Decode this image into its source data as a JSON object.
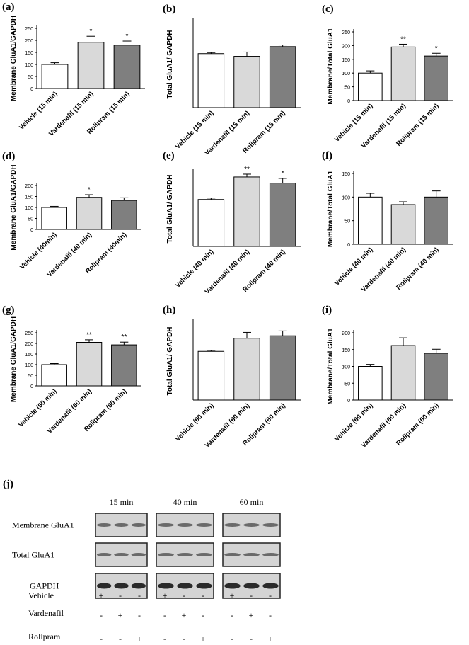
{
  "chart_data": [
    {
      "type": "bar",
      "panel": "(a)",
      "ylabel": "Membrane GluA1/GAPDH",
      "categories": [
        "Vehicle (15 min)",
        "Vardenafil (15 min)",
        "Rolipram (15 min)"
      ],
      "values": [
        100,
        192,
        180
      ],
      "errors": [
        7,
        25,
        17
      ],
      "significance": [
        null,
        "*",
        "*"
      ],
      "colors": [
        "#ffffff",
        "#d9d9d9",
        "#7f7f7f"
      ],
      "ylim": [
        0,
        250
      ],
      "yticks": [
        0,
        50,
        100,
        150,
        200,
        250
      ]
    },
    {
      "type": "bar",
      "panel": "(b)",
      "ylabel": "Total GluA1/ GAPDH",
      "categories": [
        "Vehicle (15 min)",
        "Vardenafil (15 min)",
        "Rolipram (15 min)"
      ],
      "values": [
        100,
        95,
        113
      ],
      "errors": [
        2,
        8,
        3
      ],
      "significance": [
        null,
        null,
        null
      ],
      "colors": [
        "#ffffff",
        "#d9d9d9",
        "#7f7f7f"
      ],
      "ylim": [
        0,
        160
      ],
      "yticks": []
    },
    {
      "type": "bar",
      "panel": "(c)",
      "ylabel": "Membrane/Total GluA1",
      "categories": [
        "Vehicle (15 min)",
        "Vardenafil (15 min)",
        "Rolipram (15 min)"
      ],
      "values": [
        100,
        195,
        162
      ],
      "errors": [
        8,
        10,
        10
      ],
      "significance": [
        null,
        "**",
        "*"
      ],
      "colors": [
        "#ffffff",
        "#d9d9d9",
        "#7f7f7f"
      ],
      "ylim": [
        0,
        250
      ],
      "yticks": [
        0,
        50,
        100,
        150,
        200,
        250
      ]
    },
    {
      "type": "bar",
      "panel": "(d)",
      "ylabel": "Membrane GluA1/GAPDH",
      "categories": [
        "Vehicle (40min)",
        "Vardenafil (40 min)",
        "Rolipram (40min)"
      ],
      "values": [
        100,
        146,
        132
      ],
      "errors": [
        5,
        12,
        12
      ],
      "significance": [
        null,
        "*",
        null
      ],
      "colors": [
        "#ffffff",
        "#d9d9d9",
        "#7f7f7f"
      ],
      "ylim": [
        0,
        200
      ],
      "yticks": [
        0,
        50,
        100,
        150,
        200
      ]
    },
    {
      "type": "bar",
      "panel": "(e)",
      "ylabel": "Total GluA1/ GAPDH",
      "categories": [
        "Vehicle (40 min)",
        "Vardenafil (40 min)",
        "Rolipram (40 min)"
      ],
      "values": [
        100,
        148,
        135
      ],
      "errors": [
        3,
        6,
        10
      ],
      "significance": [
        null,
        "**",
        "*"
      ],
      "colors": [
        "#ffffff",
        "#d9d9d9",
        "#7f7f7f"
      ],
      "ylim": [
        0,
        160
      ],
      "yticks": []
    },
    {
      "type": "bar",
      "panel": "(f)",
      "ylabel": "Membrane/Total GluA1",
      "categories": [
        "Vehicle (40 min)",
        "Vardenafil (40 min)",
        "Rolipram (40 min)"
      ],
      "values": [
        100,
        84,
        100
      ],
      "errors": [
        8,
        6,
        13
      ],
      "significance": [
        null,
        null,
        null
      ],
      "colors": [
        "#ffffff",
        "#d9d9d9",
        "#7f7f7f"
      ],
      "ylim": [
        0,
        150
      ],
      "yticks": [
        0,
        50,
        100,
        150
      ]
    },
    {
      "type": "bar",
      "panel": "(g)",
      "ylabel": "Membrane GluA1/GAPDH",
      "categories": [
        "Vehicle (60 min)",
        "Vardenafil (60 min)",
        "Rolipram (60 min)"
      ],
      "values": [
        100,
        205,
        193
      ],
      "errors": [
        5,
        12,
        13
      ],
      "significance": [
        null,
        "**",
        "**"
      ],
      "colors": [
        "#ffffff",
        "#d9d9d9",
        "#7f7f7f"
      ],
      "ylim": [
        0,
        250
      ],
      "yticks": [
        0,
        50,
        100,
        150,
        200,
        250
      ]
    },
    {
      "type": "bar",
      "panel": "(h)",
      "ylabel": "Total GluA1/ GAPDH",
      "categories": [
        "Vehicle (60 min)",
        "Vardenafil (60 min)",
        "Rolipram (60 min)"
      ],
      "values": [
        100,
        127,
        132
      ],
      "errors": [
        2,
        12,
        10
      ],
      "significance": [
        null,
        null,
        null
      ],
      "colors": [
        "#ffffff",
        "#d9d9d9",
        "#7f7f7f"
      ],
      "ylim": [
        0,
        160
      ],
      "yticks": []
    },
    {
      "type": "bar",
      "panel": "(i)",
      "ylabel": "Membrane/Total GluA1",
      "categories": [
        "Vehicle (60 min)",
        "Vardenafil (60 min)",
        "Rolipram (60 min)"
      ],
      "values": [
        100,
        162,
        139
      ],
      "errors": [
        6,
        23,
        12
      ],
      "significance": [
        null,
        null,
        null
      ],
      "colors": [
        "#ffffff",
        "#d9d9d9",
        "#7f7f7f"
      ],
      "ylim": [
        0,
        200
      ],
      "yticks": [
        0,
        50,
        100,
        150,
        200
      ]
    }
  ],
  "blot": {
    "panel": "(j)",
    "times": [
      "15 min",
      "40 min",
      "60 min"
    ],
    "rows": [
      "Membrane GluA1",
      "Total GluA1",
      "GAPDH"
    ],
    "treatments": [
      {
        "name": "Vehicle",
        "signs": [
          "+",
          "-",
          "-",
          "+",
          "-",
          "-",
          "+",
          "-",
          "-"
        ]
      },
      {
        "name": "Vardenafil",
        "signs": [
          "-",
          "+",
          "-",
          "-",
          "+",
          "-",
          "-",
          "+",
          "-"
        ]
      },
      {
        "name": "Rolipram",
        "signs": [
          "-",
          "-",
          "+",
          "-",
          "-",
          "+",
          "-",
          "-",
          "+"
        ]
      }
    ]
  }
}
